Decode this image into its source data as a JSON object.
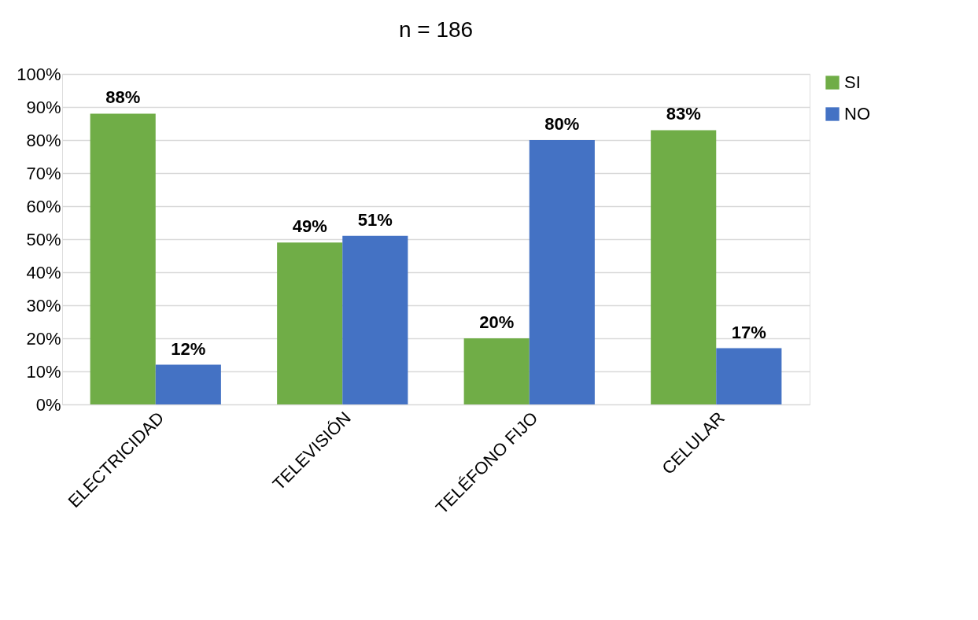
{
  "chart_data": {
    "type": "bar",
    "title": "n = 186",
    "categories": [
      "ELECTRICIDAD",
      "TELEVISIÓN",
      "TELÉFONO FIJO",
      "CELULAR"
    ],
    "series": [
      {
        "name": "SI",
        "color": "#70ad47",
        "values": [
          88,
          49,
          20,
          83
        ],
        "value_labels": [
          "88%",
          "49%",
          "20%",
          "83%"
        ]
      },
      {
        "name": "NO",
        "color": "#4472c4",
        "values": [
          12,
          51,
          80,
          17
        ],
        "value_labels": [
          "12%",
          "51%",
          "80%",
          "17%"
        ]
      }
    ],
    "ylim": [
      0,
      100
    ],
    "yticks": [
      {
        "value": 0,
        "label": "0%"
      },
      {
        "value": 10,
        "label": "10%"
      },
      {
        "value": 20,
        "label": "20%"
      },
      {
        "value": 30,
        "label": "30%"
      },
      {
        "value": 40,
        "label": "40%"
      },
      {
        "value": 50,
        "label": "50%"
      },
      {
        "value": 60,
        "label": "60%"
      },
      {
        "value": 70,
        "label": "70%"
      },
      {
        "value": 80,
        "label": "80%"
      },
      {
        "value": 90,
        "label": "90%"
      },
      {
        "value": 100,
        "label": "100%"
      }
    ],
    "grid": "y",
    "legend": "right"
  }
}
